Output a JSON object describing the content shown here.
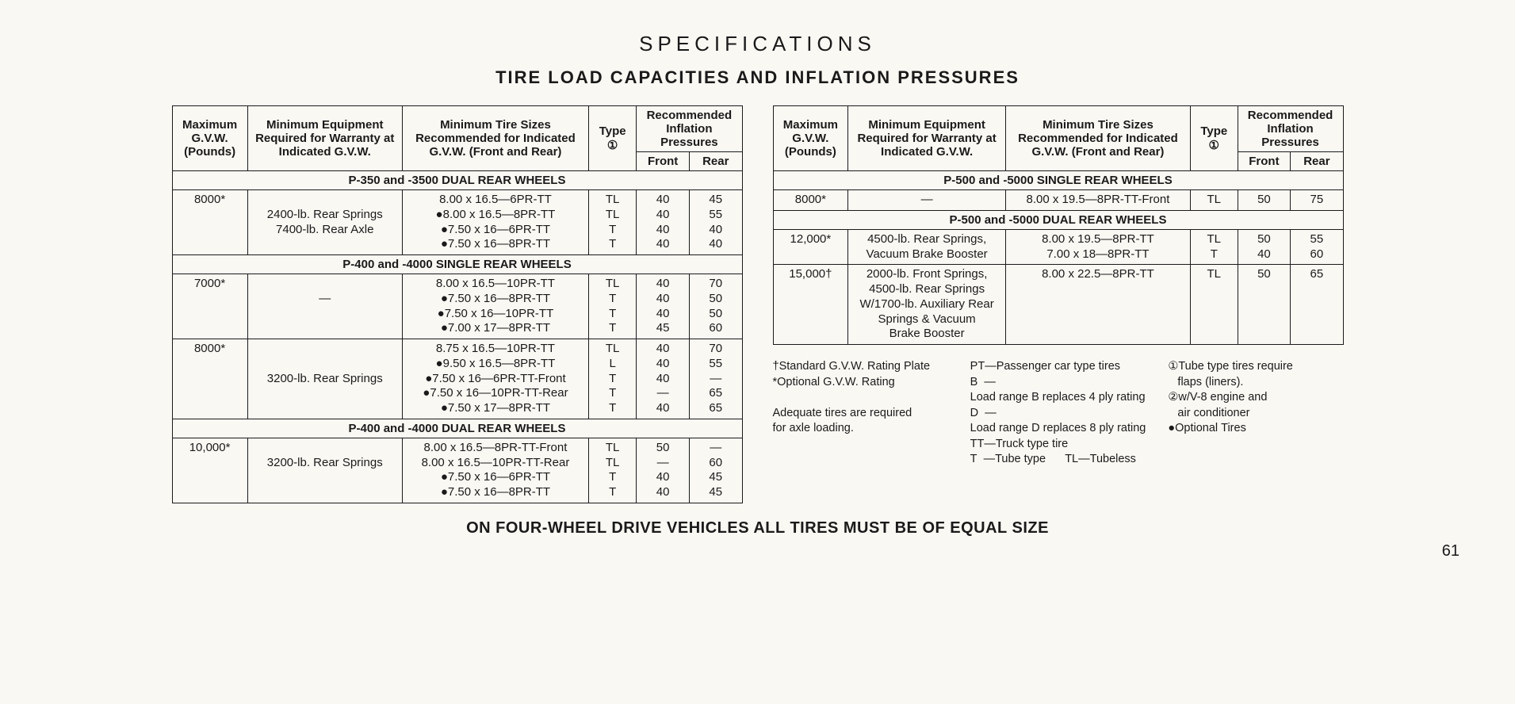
{
  "title": "SPECIFICATIONS",
  "subtitle": "TIRE LOAD CAPACITIES AND INFLATION PRESSURES",
  "headers": {
    "gvw": "Maximum G.V.W. (Pounds)",
    "equip": "Minimum Equipment Required for Warranty at Indicated G.V.W.",
    "tire": "Minimum Tire Sizes Recommended for Indicated G.V.W. (Front and Rear)",
    "type": "Type ①",
    "press": "Recommended Inflation Pressures",
    "front": "Front",
    "rear": "Rear"
  },
  "leftTable": [
    {
      "kind": "section",
      "label": "P-350 and -3500 DUAL REAR WHEELS"
    },
    {
      "kind": "row",
      "gvw": "8000*",
      "equip": [
        "",
        "2400-lb. Rear Springs",
        "7400-lb. Rear Axle"
      ],
      "tire": [
        "8.00 x 16.5—6PR-TT",
        "●8.00 x 16.5—8PR-TT",
        "●7.50 x 16—6PR-TT",
        "●7.50 x 16—8PR-TT"
      ],
      "type": [
        "TL",
        "TL",
        "T",
        "T"
      ],
      "front": [
        "40",
        "40",
        "40",
        "40"
      ],
      "rear": [
        "45",
        "55",
        "40",
        "40"
      ]
    },
    {
      "kind": "section",
      "label": "P-400 and -4000 SINGLE REAR WHEELS"
    },
    {
      "kind": "row",
      "gvw": "7000*",
      "equip": [
        "",
        "—"
      ],
      "tire": [
        "8.00 x 16.5—10PR-TT",
        "●7.50 x 16—8PR-TT",
        "●7.50 x 16—10PR-TT",
        "●7.00 x 17—8PR-TT"
      ],
      "type": [
        "TL",
        "T",
        "T",
        "T"
      ],
      "front": [
        "40",
        "40",
        "40",
        "45"
      ],
      "rear": [
        "70",
        "50",
        "50",
        "60"
      ]
    },
    {
      "kind": "row",
      "gvw": "8000*",
      "equip": [
        "",
        "",
        "3200-lb. Rear Springs"
      ],
      "tire": [
        "8.75 x 16.5—10PR-TT",
        "●9.50 x 16.5—8PR-TT",
        "●7.50 x 16—6PR-TT-Front",
        "●7.50 x 16—10PR-TT-Rear",
        "●7.50 x 17—8PR-TT"
      ],
      "type": [
        "TL",
        "L",
        "T",
        "T",
        "T"
      ],
      "front": [
        "40",
        "40",
        "40",
        "—",
        "40"
      ],
      "rear": [
        "70",
        "55",
        "—",
        "65",
        "65"
      ]
    },
    {
      "kind": "section",
      "label": "P-400 and -4000 DUAL REAR WHEELS"
    },
    {
      "kind": "row",
      "gvw": "10,000*",
      "equip": [
        "",
        "3200-lb. Rear Springs"
      ],
      "tire": [
        "8.00 x 16.5—8PR-TT-Front",
        "8.00 x 16.5—10PR-TT-Rear",
        "●7.50 x 16—6PR-TT",
        "●7.50 x 16—8PR-TT"
      ],
      "type": [
        "TL",
        "TL",
        "T",
        "T"
      ],
      "front": [
        "50",
        "—",
        "40",
        "40"
      ],
      "rear": [
        "—",
        "60",
        "45",
        "45"
      ]
    }
  ],
  "rightTable": [
    {
      "kind": "section",
      "label": "P-500 and -5000 SINGLE REAR WHEELS"
    },
    {
      "kind": "row",
      "gvw": "8000*",
      "equip": [
        "—"
      ],
      "tire": [
        "8.00 x 19.5—8PR-TT-Front"
      ],
      "type": [
        "TL"
      ],
      "front": [
        "50"
      ],
      "rear": [
        "75"
      ]
    },
    {
      "kind": "section",
      "label": "P-500 and -5000 DUAL REAR WHEELS"
    },
    {
      "kind": "row",
      "gvw": "12,000*",
      "equip": [
        "4500-lb. Rear Springs,",
        "Vacuum Brake Booster"
      ],
      "tire": [
        "8.00 x 19.5—8PR-TT",
        "7.00 x 18—8PR-TT"
      ],
      "type": [
        "TL",
        "T"
      ],
      "front": [
        "50",
        "40"
      ],
      "rear": [
        "55",
        "60"
      ]
    },
    {
      "kind": "row",
      "gvw": "15,000†",
      "equip": [
        "2000-lb. Front Springs,",
        "4500-lb. Rear Springs",
        "W/1700-lb. Auxiliary Rear",
        "Springs & Vacuum",
        "Brake Booster"
      ],
      "tire": [
        "8.00 x 22.5—8PR-TT"
      ],
      "type": [
        "TL"
      ],
      "front": [
        "50"
      ],
      "rear": [
        "65"
      ]
    }
  ],
  "footnotes": {
    "col1": [
      "†Standard G.V.W. Rating Plate",
      "*Optional G.V.W. Rating",
      "",
      "Adequate tires are required",
      "for axle loading."
    ],
    "col2": [
      "PT—Passenger car type tires",
      "B  —Load range B replaces 4 ply rating",
      "D  —Load range D replaces 8 ply rating",
      "TT—Truck type tire",
      "T  —Tube type      TL—Tubeless"
    ],
    "col3": [
      "①Tube type tires require",
      "   flaps (liners).",
      "②w/V-8 engine and",
      "   air conditioner",
      "●Optional Tires"
    ]
  },
  "bottomNote": "ON FOUR-WHEEL DRIVE VEHICLES ALL TIRES MUST BE OF EQUAL SIZE",
  "pageNumber": "61"
}
